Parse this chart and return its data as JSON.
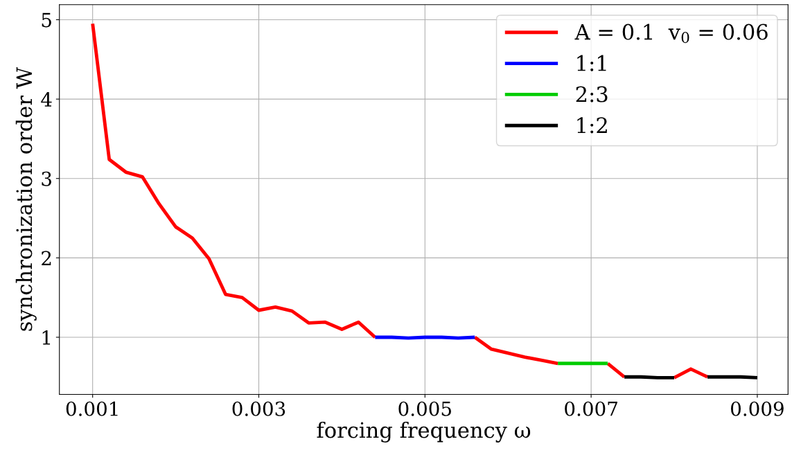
{
  "chart_data": {
    "type": "line",
    "xlabel": "forcing frequency ω",
    "ylabel": "synchronization order W",
    "x": [
      0.001,
      0.0012,
      0.0014,
      0.0016,
      0.0018,
      0.002,
      0.0022,
      0.0024,
      0.0026,
      0.0028,
      0.003,
      0.0032,
      0.0034,
      0.0036,
      0.0038,
      0.004,
      0.0042,
      0.0044,
      0.0046,
      0.0048,
      0.005,
      0.0052,
      0.0054,
      0.0056,
      0.0058,
      0.006,
      0.0062,
      0.0064,
      0.0066,
      0.0068,
      0.007,
      0.0072,
      0.0074,
      0.0076,
      0.0078,
      0.008,
      0.0082,
      0.0084,
      0.0086,
      0.0088,
      0.009
    ],
    "series": [
      {
        "name": "A = 0.1  v$_{0}$ = 0.06",
        "color": "#ff0000",
        "values": [
          4.95,
          3.24,
          3.08,
          3.02,
          2.68,
          2.39,
          2.25,
          1.99,
          1.54,
          1.5,
          1.34,
          1.38,
          1.33,
          1.18,
          1.19,
          1.1,
          1.19,
          1.0,
          null,
          null,
          null,
          null,
          null,
          1.0,
          0.85,
          0.8,
          0.75,
          0.71,
          0.67,
          null,
          null,
          0.67,
          0.5,
          null,
          null,
          0.49,
          0.6,
          0.5,
          null,
          null,
          null
        ]
      },
      {
        "name": "1:1",
        "color": "#0000ff",
        "values": [
          null,
          null,
          null,
          null,
          null,
          null,
          null,
          null,
          null,
          null,
          null,
          null,
          null,
          null,
          null,
          null,
          null,
          1.0,
          1.0,
          0.99,
          1.0,
          1.0,
          0.99,
          1.0,
          null,
          null,
          null,
          null,
          null,
          null,
          null,
          null,
          null,
          null,
          null,
          null,
          null,
          null,
          null,
          null,
          null
        ]
      },
      {
        "name": "2:3",
        "color": "#00cc00",
        "values": [
          null,
          null,
          null,
          null,
          null,
          null,
          null,
          null,
          null,
          null,
          null,
          null,
          null,
          null,
          null,
          null,
          null,
          null,
          null,
          null,
          null,
          null,
          null,
          null,
          null,
          null,
          null,
          null,
          0.67,
          0.67,
          0.67,
          0.67,
          null,
          null,
          null,
          null,
          null,
          null,
          null,
          null,
          null
        ]
      },
      {
        "name": "1:2",
        "color": "#000000",
        "values": [
          null,
          null,
          null,
          null,
          null,
          null,
          null,
          null,
          null,
          null,
          null,
          null,
          null,
          null,
          null,
          null,
          null,
          null,
          null,
          null,
          null,
          null,
          null,
          null,
          null,
          null,
          null,
          null,
          null,
          null,
          null,
          null,
          0.5,
          0.5,
          0.49,
          0.49,
          null,
          0.5,
          0.5,
          0.5,
          0.49
        ]
      }
    ],
    "xlim": [
      0.0006,
      0.00937
    ],
    "xticks": [
      0.001,
      0.003,
      0.005,
      0.007,
      0.009
    ],
    "ylim": [
      0.28,
      5.19
    ],
    "yticks": [
      1,
      2,
      3,
      4,
      5
    ],
    "grid": true,
    "legend": "top right"
  }
}
